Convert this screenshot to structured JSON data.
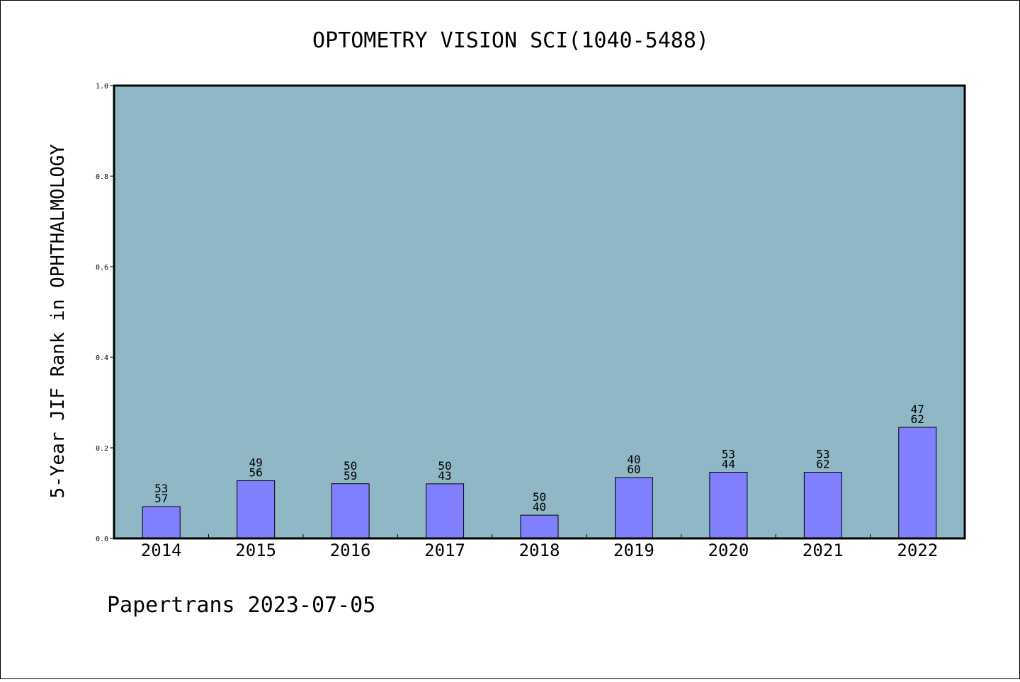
{
  "chart_data": {
    "type": "bar",
    "title": "OPTOMETRY VISION SCI(1040-5488)",
    "xlabel": "",
    "ylabel": "5-Year JIF Rank in OPHTHALMOLOGY",
    "ylim": [
      0,
      1.0
    ],
    "yticks": [
      "0.0",
      "0.2",
      "0.4",
      "0.6",
      "0.8",
      "1.0"
    ],
    "categories": [
      "2014",
      "2015",
      "2016",
      "2017",
      "2018",
      "2019",
      "2020",
      "2021",
      "2022"
    ],
    "values": [
      0.0702,
      0.1273,
      0.1207,
      0.1205,
      0.0513,
      0.1344,
      0.1461,
      0.146,
      0.2453
    ],
    "labels": [
      [
        "53",
        "57"
      ],
      [
        "49",
        "56"
      ],
      [
        "50",
        "59"
      ],
      [
        "50",
        "43"
      ],
      [
        "50",
        "40"
      ],
      [
        "40",
        "60"
      ],
      [
        "53",
        "44"
      ],
      [
        "53",
        "62"
      ],
      [
        "47",
        "62"
      ]
    ],
    "bar_color": "#8080ff",
    "plot_background": "#8fb7c5",
    "grid": false
  },
  "footer": "Papertrans 2023-07-05"
}
